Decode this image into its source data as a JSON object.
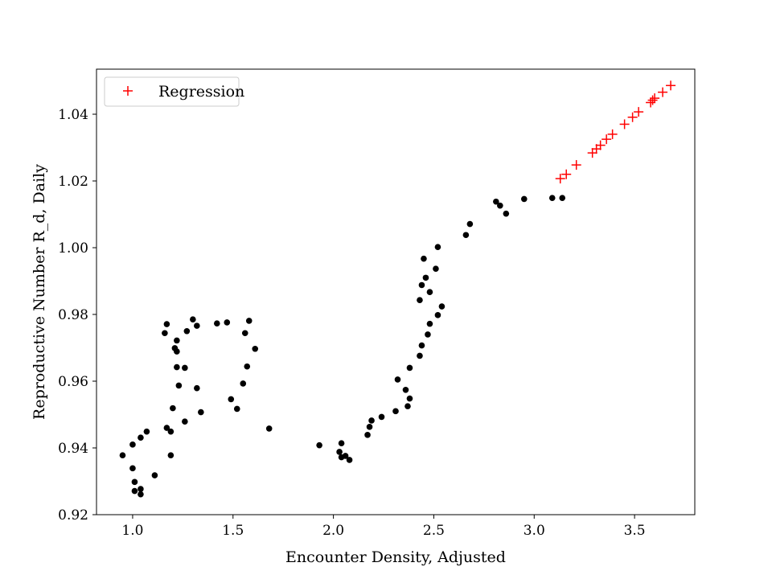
{
  "chart_data": {
    "type": "scatter",
    "xlabel": "Encounter Density, Adjusted",
    "ylabel": "Reproductive Number R_d, Daily",
    "xlim": [
      0.82,
      3.8
    ],
    "ylim": [
      0.92,
      1.0535
    ],
    "xticks": [
      1.0,
      1.5,
      2.0,
      2.5,
      3.0,
      3.5
    ],
    "xtick_labels": [
      "1.0",
      "1.5",
      "2.0",
      "2.5",
      "3.0",
      "3.5"
    ],
    "yticks": [
      0.92,
      0.94,
      0.96,
      0.98,
      1.0,
      1.02,
      1.04
    ],
    "ytick_labels": [
      "0.92",
      "0.94",
      "0.96",
      "0.98",
      "1.00",
      "1.02",
      "1.04"
    ],
    "grid": false,
    "legend": {
      "position": "top-left",
      "entries": [
        "Regression"
      ]
    },
    "series": [
      {
        "marker": "dot",
        "color": "#000000",
        "points": [
          [
            0.95,
            0.9378
          ],
          [
            1.0,
            0.9339
          ],
          [
            1.0,
            0.941
          ],
          [
            1.01,
            0.9298
          ],
          [
            1.01,
            0.9271
          ],
          [
            1.04,
            0.9261
          ],
          [
            1.04,
            0.9277
          ],
          [
            1.04,
            0.9431
          ],
          [
            1.07,
            0.9449
          ],
          [
            1.11,
            0.9318
          ],
          [
            1.16,
            0.9744
          ],
          [
            1.17,
            0.9771
          ],
          [
            1.17,
            0.946
          ],
          [
            1.19,
            0.9378
          ],
          [
            1.19,
            0.9449
          ],
          [
            1.2,
            0.9519
          ],
          [
            1.21,
            0.9699
          ],
          [
            1.22,
            0.9689
          ],
          [
            1.22,
            0.9722
          ],
          [
            1.22,
            0.9642
          ],
          [
            1.23,
            0.9587
          ],
          [
            1.26,
            0.9479
          ],
          [
            1.26,
            0.964
          ],
          [
            1.27,
            0.975
          ],
          [
            1.3,
            0.9785
          ],
          [
            1.32,
            0.9579
          ],
          [
            1.32,
            0.9766
          ],
          [
            1.34,
            0.9507
          ],
          [
            1.42,
            0.9773
          ],
          [
            1.47,
            0.9776
          ],
          [
            1.49,
            0.9546
          ],
          [
            1.52,
            0.9517
          ],
          [
            1.55,
            0.9593
          ],
          [
            1.56,
            0.9744
          ],
          [
            1.57,
            0.9644
          ],
          [
            1.58,
            0.9781
          ],
          [
            1.61,
            0.9697
          ],
          [
            1.68,
            0.9458
          ],
          [
            1.93,
            0.9408
          ],
          [
            2.03,
            0.9388
          ],
          [
            2.04,
            0.9414
          ],
          [
            2.04,
            0.9372
          ],
          [
            2.06,
            0.9376
          ],
          [
            2.08,
            0.9364
          ],
          [
            2.17,
            0.9439
          ],
          [
            2.18,
            0.9463
          ],
          [
            2.19,
            0.9482
          ],
          [
            2.24,
            0.9493
          ],
          [
            2.31,
            0.951
          ],
          [
            2.32,
            0.9605
          ],
          [
            2.36,
            0.9574
          ],
          [
            2.37,
            0.9525
          ],
          [
            2.38,
            0.9548
          ],
          [
            2.38,
            0.964
          ],
          [
            2.43,
            0.9676
          ],
          [
            2.43,
            0.9843
          ],
          [
            2.44,
            0.9707
          ],
          [
            2.44,
            0.9888
          ],
          [
            2.45,
            0.9967
          ],
          [
            2.46,
            0.991
          ],
          [
            2.47,
            0.974
          ],
          [
            2.48,
            0.9772
          ],
          [
            2.48,
            0.9867
          ],
          [
            2.51,
            0.9937
          ],
          [
            2.52,
            0.9798
          ],
          [
            2.52,
            1.0002
          ],
          [
            2.54,
            0.9824
          ],
          [
            2.66,
            1.0038
          ],
          [
            2.68,
            1.0071
          ],
          [
            2.81,
            1.0138
          ],
          [
            2.83,
            1.0126
          ],
          [
            2.86,
            1.0102
          ],
          [
            2.95,
            1.0146
          ],
          [
            3.09,
            1.0149
          ],
          [
            3.14,
            1.0149
          ]
        ]
      },
      {
        "name": "Regression",
        "marker": "plus",
        "color": "#ff0000",
        "points": [
          [
            3.13,
            1.0207
          ],
          [
            3.16,
            1.022
          ],
          [
            3.21,
            1.0248
          ],
          [
            3.29,
            1.0284
          ],
          [
            3.31,
            1.0296
          ],
          [
            3.33,
            1.0307
          ],
          [
            3.36,
            1.0325
          ],
          [
            3.39,
            1.034
          ],
          [
            3.45,
            1.037
          ],
          [
            3.49,
            1.0391
          ],
          [
            3.52,
            1.0407
          ],
          [
            3.58,
            1.0435
          ],
          [
            3.59,
            1.0442
          ],
          [
            3.6,
            1.0448
          ],
          [
            3.64,
            1.0466
          ],
          [
            3.68,
            1.0486
          ]
        ]
      }
    ]
  }
}
